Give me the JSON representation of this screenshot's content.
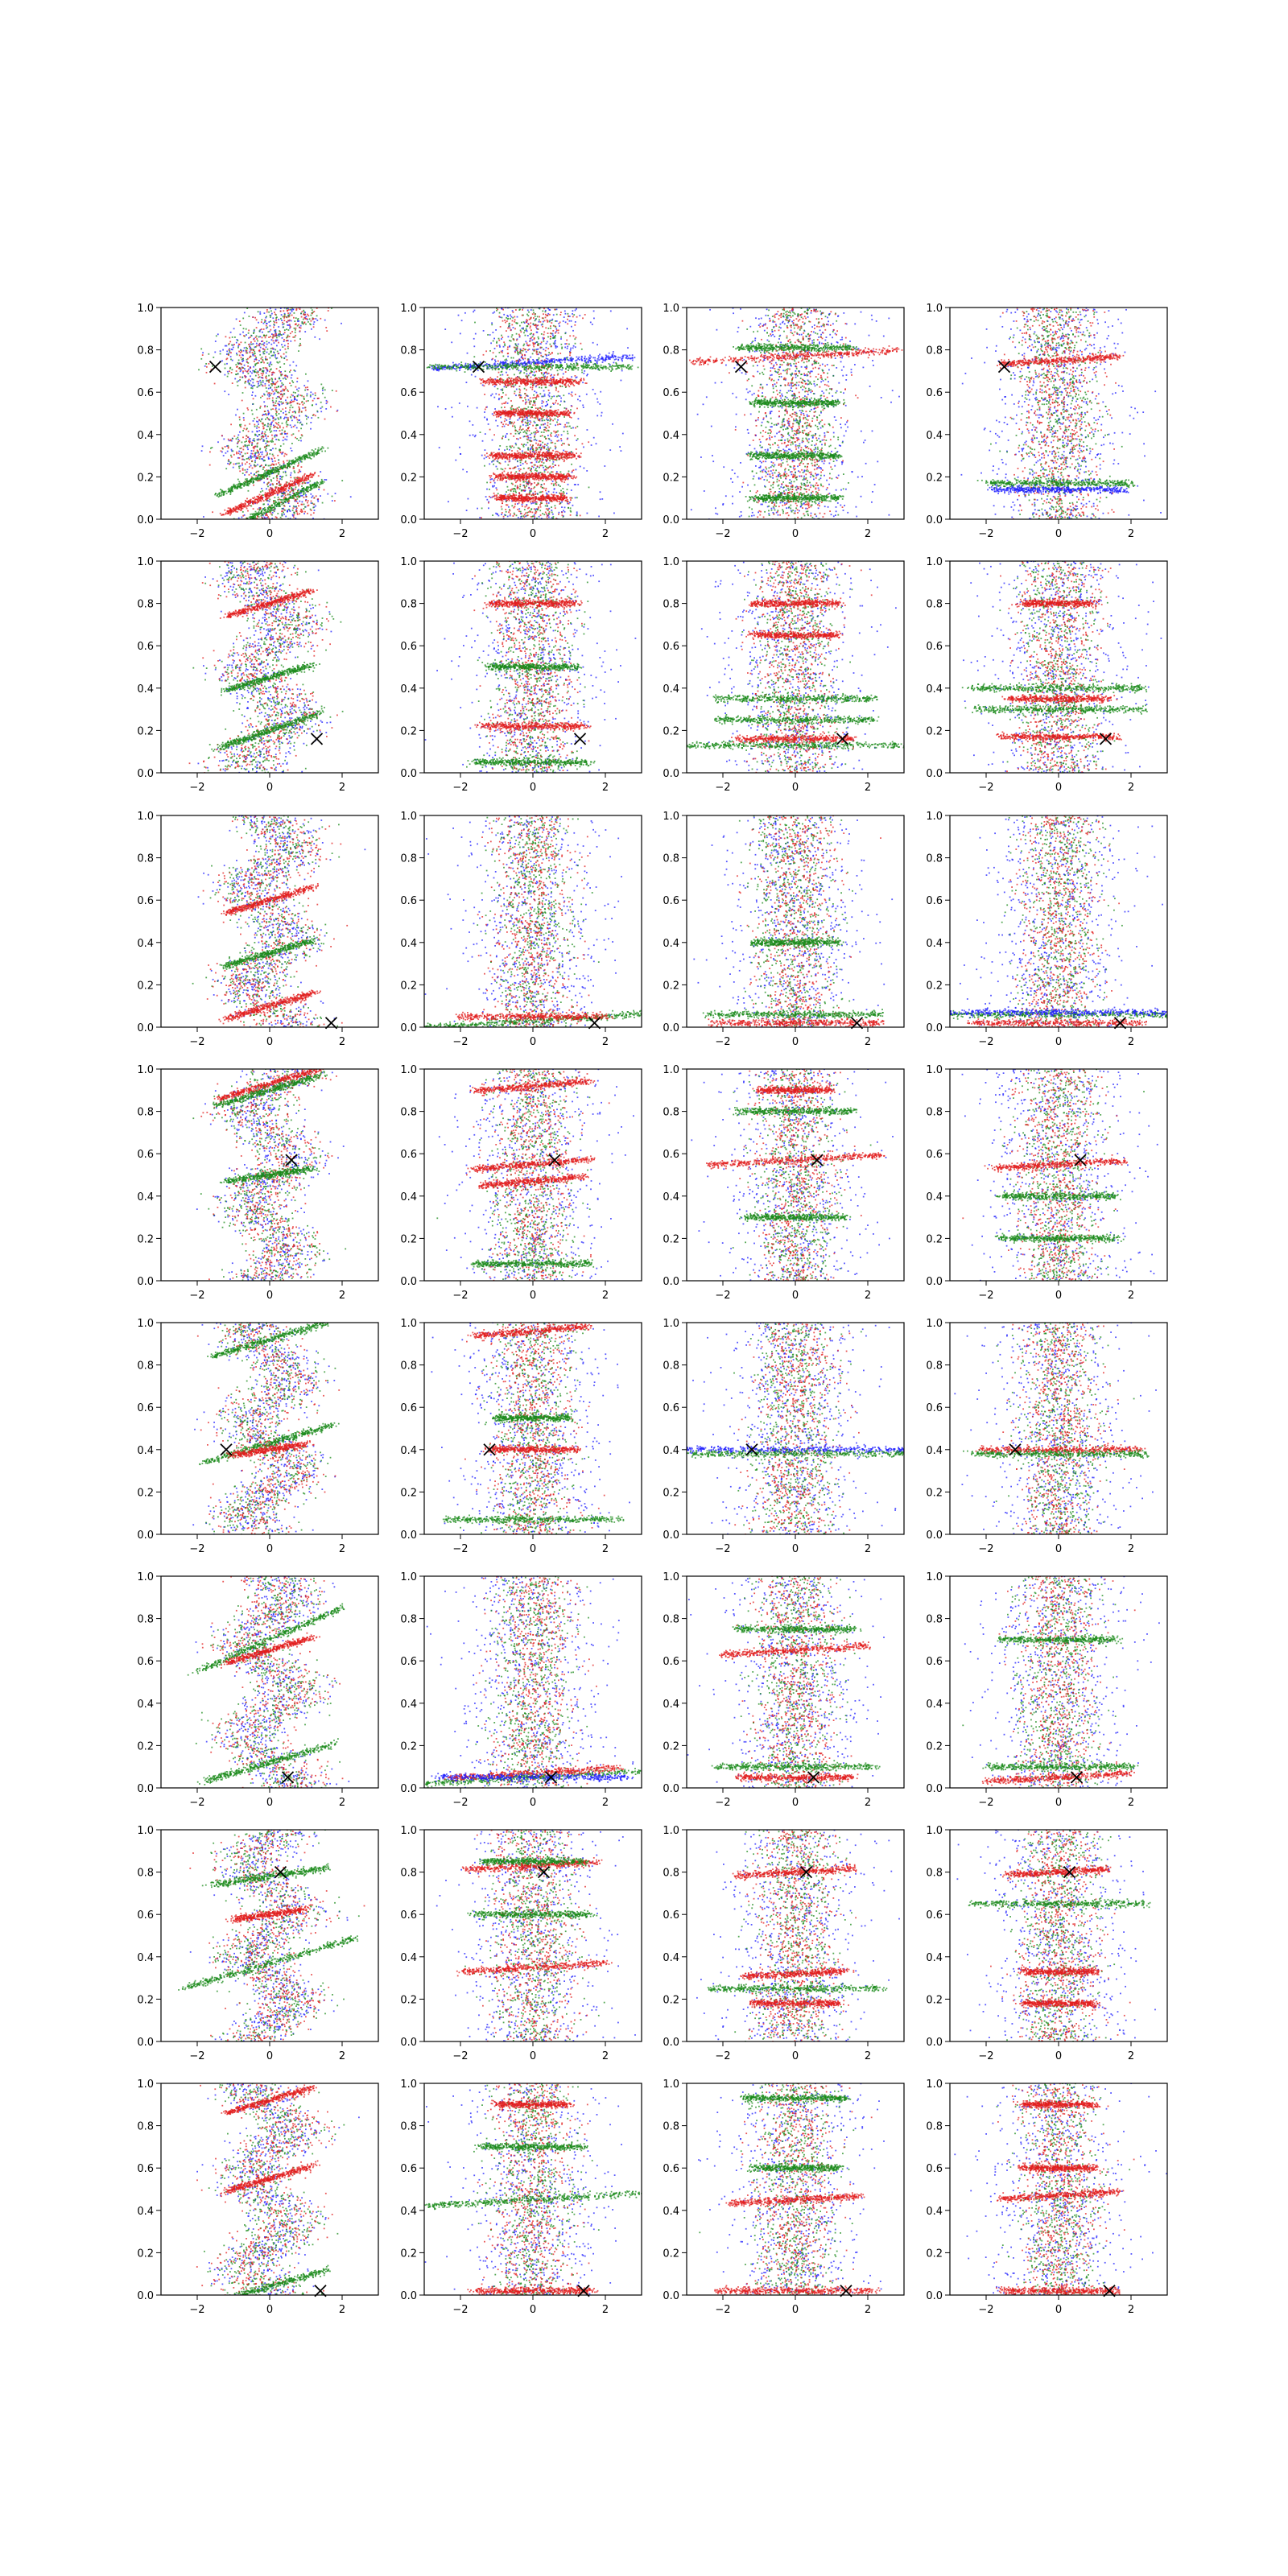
{
  "chart_data": {
    "type": "scatter",
    "grid": {
      "rows": 8,
      "cols": 4
    },
    "xlim": [
      -3,
      3
    ],
    "ylim": [
      0,
      1
    ],
    "x_ticks": [
      -2,
      0,
      2
    ],
    "x_tick_labels": [
      "−2",
      "0",
      "2"
    ],
    "y_ticks": [
      0,
      0.2,
      0.4,
      0.6,
      0.8,
      1.0
    ],
    "y_tick_labels": [
      "0.0",
      "0.2",
      "0.4",
      "0.6",
      "0.8",
      "1.0"
    ],
    "grid_lines": false,
    "legend": "none",
    "series_colors": {
      "blue": "#1f1fff",
      "red": "#e21d1d",
      "green": "#1a8a1a"
    },
    "marker_color": "#000000",
    "markers": [
      {
        "x": -1.5,
        "y": 0.72
      },
      {
        "x": 1.3,
        "y": 0.16
      },
      {
        "x": 1.7,
        "y": 0.02
      },
      {
        "x": 0.6,
        "y": 0.57
      },
      {
        "x": -1.2,
        "y": 0.4
      },
      {
        "x": 0.5,
        "y": 0.05
      },
      {
        "x": 0.3,
        "y": 0.8
      },
      {
        "x": 1.4,
        "y": 0.02
      }
    ],
    "panels": [
      {
        "row": 0,
        "col": 0,
        "style": "zigzag",
        "bands": [
          {
            "y": 0.05,
            "c": "green",
            "w": 1.4,
            "s": 0.18
          },
          {
            "y": 0.22,
            "c": "green",
            "w": 1.4,
            "s": 0.15
          },
          {
            "y": 0.12,
            "c": "red",
            "w": 1.2,
            "s": 0.15
          }
        ]
      },
      {
        "row": 0,
        "col": 1,
        "style": "bands",
        "bands": [
          {
            "y": 0.74,
            "c": "blue",
            "w": 2.8,
            "s": 0.02
          },
          {
            "y": 0.72,
            "c": "green",
            "w": 2.8,
            "s": 0.0
          },
          {
            "y": 0.65,
            "c": "red",
            "w": 1.3,
            "s": 0.0
          },
          {
            "y": 0.5,
            "c": "red",
            "w": 1.0,
            "s": 0.0
          },
          {
            "y": 0.3,
            "c": "red",
            "w": 1.2,
            "s": 0.0
          },
          {
            "y": 0.2,
            "c": "red",
            "w": 1.0,
            "s": 0.0
          },
          {
            "y": 0.1,
            "c": "red",
            "w": 1.0,
            "s": 0.0
          }
        ]
      },
      {
        "row": 0,
        "col": 2,
        "style": "bands",
        "bands": [
          {
            "y": 0.77,
            "c": "red",
            "w": 2.8,
            "s": 0.02
          },
          {
            "y": 0.81,
            "c": "green",
            "w": 1.6,
            "s": 0.0
          },
          {
            "y": 0.55,
            "c": "green",
            "w": 1.2,
            "s": 0.0
          },
          {
            "y": 0.3,
            "c": "green",
            "w": 1.2,
            "s": 0.0
          },
          {
            "y": 0.1,
            "c": "green",
            "w": 1.2,
            "s": 0.0
          }
        ]
      },
      {
        "row": 0,
        "col": 3,
        "style": "bands",
        "bands": [
          {
            "y": 0.75,
            "c": "red",
            "w": 1.6,
            "s": 0.02
          },
          {
            "y": 0.17,
            "c": "green",
            "w": 2.0,
            "s": 0.0
          },
          {
            "y": 0.14,
            "c": "blue",
            "w": 1.8,
            "s": 0.0
          }
        ]
      },
      {
        "row": 1,
        "col": 0,
        "style": "zigzag",
        "bands": [
          {
            "y": 0.2,
            "c": "green",
            "w": 1.4,
            "s": 0.12
          },
          {
            "y": 0.45,
            "c": "green",
            "w": 1.2,
            "s": 0.1
          },
          {
            "y": 0.8,
            "c": "red",
            "w": 1.2,
            "s": 0.1
          }
        ]
      },
      {
        "row": 1,
        "col": 1,
        "style": "bands",
        "bands": [
          {
            "y": 0.8,
            "c": "red",
            "w": 1.2,
            "s": 0.0
          },
          {
            "y": 0.22,
            "c": "red",
            "w": 1.4,
            "s": 0.0
          },
          {
            "y": 0.05,
            "c": "green",
            "w": 1.6,
            "s": 0.0
          },
          {
            "y": 0.5,
            "c": "green",
            "w": 1.2,
            "s": 0.0
          }
        ]
      },
      {
        "row": 1,
        "col": 2,
        "style": "bands",
        "bands": [
          {
            "y": 0.13,
            "c": "green",
            "w": 3.0,
            "s": 0.0
          },
          {
            "y": 0.25,
            "c": "green",
            "w": 2.2,
            "s": 0.0
          },
          {
            "y": 0.35,
            "c": "green",
            "w": 2.2,
            "s": 0.0
          },
          {
            "y": 0.16,
            "c": "red",
            "w": 1.6,
            "s": 0.0
          },
          {
            "y": 0.8,
            "c": "red",
            "w": 1.2,
            "s": 0.0
          },
          {
            "y": 0.65,
            "c": "red",
            "w": 1.2,
            "s": 0.0
          }
        ]
      },
      {
        "row": 1,
        "col": 3,
        "style": "bands",
        "bands": [
          {
            "y": 0.17,
            "c": "red",
            "w": 1.6,
            "s": 0.0
          },
          {
            "y": 0.35,
            "c": "red",
            "w": 1.4,
            "s": 0.0
          },
          {
            "y": 0.4,
            "c": "green",
            "w": 2.4,
            "s": 0.0
          },
          {
            "y": 0.3,
            "c": "green",
            "w": 2.4,
            "s": 0.0
          },
          {
            "y": 0.8,
            "c": "red",
            "w": 1.0,
            "s": 0.0
          }
        ]
      },
      {
        "row": 2,
        "col": 0,
        "style": "zigzag",
        "bands": [
          {
            "y": 0.35,
            "c": "green",
            "w": 1.2,
            "s": 0.1
          },
          {
            "y": 0.6,
            "c": "red",
            "w": 1.2,
            "s": 0.1
          },
          {
            "y": 0.1,
            "c": "red",
            "w": 1.2,
            "s": 0.1
          }
        ]
      },
      {
        "row": 2,
        "col": 1,
        "style": "bands",
        "bands": [
          {
            "y": 0.03,
            "c": "green",
            "w": 3.0,
            "s": 0.02
          },
          {
            "y": 0.05,
            "c": "red",
            "w": 2.0,
            "s": 0.0
          }
        ]
      },
      {
        "row": 2,
        "col": 2,
        "style": "bands",
        "bands": [
          {
            "y": 0.02,
            "c": "red",
            "w": 2.4,
            "s": 0.0
          },
          {
            "y": 0.06,
            "c": "green",
            "w": 2.4,
            "s": 0.0
          },
          {
            "y": 0.4,
            "c": "green",
            "w": 1.2,
            "s": 0.0
          }
        ]
      },
      {
        "row": 2,
        "col": 3,
        "style": "bands",
        "bands": [
          {
            "y": 0.06,
            "c": "green",
            "w": 3.2,
            "s": 0.0
          },
          {
            "y": 0.07,
            "c": "blue",
            "w": 3.2,
            "s": 0.0
          },
          {
            "y": 0.02,
            "c": "red",
            "w": 2.4,
            "s": 0.0
          }
        ]
      },
      {
        "row": 3,
        "col": 0,
        "style": "zigzag",
        "bands": [
          {
            "y": 0.93,
            "c": "red",
            "w": 1.4,
            "s": 0.1
          },
          {
            "y": 0.5,
            "c": "green",
            "w": 1.2,
            "s": 0.05
          },
          {
            "y": 0.9,
            "c": "green",
            "w": 1.4,
            "s": 0.1
          }
        ]
      },
      {
        "row": 3,
        "col": 1,
        "style": "bands",
        "bands": [
          {
            "y": 0.92,
            "c": "red",
            "w": 1.6,
            "s": 0.03
          },
          {
            "y": 0.55,
            "c": "red",
            "w": 1.6,
            "s": 0.03
          },
          {
            "y": 0.47,
            "c": "red",
            "w": 1.4,
            "s": 0.03
          },
          {
            "y": 0.08,
            "c": "green",
            "w": 1.6,
            "s": 0.0
          }
        ]
      },
      {
        "row": 3,
        "col": 2,
        "style": "bands",
        "bands": [
          {
            "y": 0.57,
            "c": "red",
            "w": 2.4,
            "s": 0.02
          },
          {
            "y": 0.8,
            "c": "green",
            "w": 1.6,
            "s": 0.0
          },
          {
            "y": 0.9,
            "c": "red",
            "w": 1.0,
            "s": 0.0
          },
          {
            "y": 0.3,
            "c": "green",
            "w": 1.4,
            "s": 0.0
          }
        ]
      },
      {
        "row": 3,
        "col": 3,
        "style": "bands",
        "bands": [
          {
            "y": 0.55,
            "c": "red",
            "w": 1.8,
            "s": 0.02
          },
          {
            "y": 0.2,
            "c": "green",
            "w": 1.6,
            "s": 0.0
          },
          {
            "y": 0.4,
            "c": "green",
            "w": 1.6,
            "s": 0.0
          }
        ]
      },
      {
        "row": 4,
        "col": 0,
        "style": "zigzag",
        "bands": [
          {
            "y": 0.92,
            "c": "green",
            "w": 1.6,
            "s": 0.1
          },
          {
            "y": 0.43,
            "c": "green",
            "w": 1.8,
            "s": 0.1
          },
          {
            "y": 0.4,
            "c": "red",
            "w": 1.0,
            "s": 0.05
          }
        ]
      },
      {
        "row": 4,
        "col": 1,
        "style": "bands",
        "bands": [
          {
            "y": 0.96,
            "c": "red",
            "w": 1.6,
            "s": 0.03
          },
          {
            "y": 0.4,
            "c": "red",
            "w": 1.2,
            "s": 0.0
          },
          {
            "y": 0.07,
            "c": "green",
            "w": 2.4,
            "s": 0.0
          },
          {
            "y": 0.55,
            "c": "green",
            "w": 1.0,
            "s": 0.0
          }
        ]
      },
      {
        "row": 4,
        "col": 2,
        "style": "bands",
        "bands": [
          {
            "y": 0.4,
            "c": "blue",
            "w": 3.2,
            "s": 0.0
          },
          {
            "y": 0.38,
            "c": "green",
            "w": 3.2,
            "s": 0.0
          }
        ]
      },
      {
        "row": 4,
        "col": 3,
        "style": "bands",
        "bands": [
          {
            "y": 0.4,
            "c": "red",
            "w": 2.2,
            "s": 0.0
          },
          {
            "y": 0.38,
            "c": "green",
            "w": 2.4,
            "s": 0.0
          }
        ]
      },
      {
        "row": 5,
        "col": 0,
        "style": "zigzag",
        "bands": [
          {
            "y": 0.7,
            "c": "green",
            "w": 2.0,
            "s": 0.15
          },
          {
            "y": 0.12,
            "c": "green",
            "w": 1.8,
            "s": 0.1
          },
          {
            "y": 0.65,
            "c": "red",
            "w": 1.2,
            "s": 0.1
          }
        ]
      },
      {
        "row": 5,
        "col": 1,
        "style": "bands",
        "bands": [
          {
            "y": 0.05,
            "c": "green",
            "w": 3.2,
            "s": 0.02
          },
          {
            "y": 0.07,
            "c": "red",
            "w": 2.4,
            "s": 0.02
          },
          {
            "y": 0.05,
            "c": "blue",
            "w": 2.6,
            "s": 0.0
          }
        ]
      },
      {
        "row": 5,
        "col": 2,
        "style": "bands",
        "bands": [
          {
            "y": 0.65,
            "c": "red",
            "w": 2.0,
            "s": 0.02
          },
          {
            "y": 0.75,
            "c": "green",
            "w": 1.6,
            "s": 0.0
          },
          {
            "y": 0.1,
            "c": "green",
            "w": 2.2,
            "s": 0.0
          },
          {
            "y": 0.05,
            "c": "red",
            "w": 1.6,
            "s": 0.0
          }
        ]
      },
      {
        "row": 5,
        "col": 3,
        "style": "bands",
        "bands": [
          {
            "y": 0.05,
            "c": "red",
            "w": 2.0,
            "s": 0.02
          },
          {
            "y": 0.7,
            "c": "green",
            "w": 1.6,
            "s": 0.0
          },
          {
            "y": 0.1,
            "c": "green",
            "w": 2.0,
            "s": 0.0
          }
        ]
      },
      {
        "row": 6,
        "col": 0,
        "style": "zigzag",
        "bands": [
          {
            "y": 0.37,
            "c": "green",
            "w": 2.4,
            "s": 0.1
          },
          {
            "y": 0.78,
            "c": "green",
            "w": 1.6,
            "s": 0.05
          },
          {
            "y": 0.6,
            "c": "red",
            "w": 1.0,
            "s": 0.05
          }
        ]
      },
      {
        "row": 6,
        "col": 1,
        "style": "bands",
        "bands": [
          {
            "y": 0.83,
            "c": "red",
            "w": 1.8,
            "s": 0.02
          },
          {
            "y": 0.85,
            "c": "green",
            "w": 1.4,
            "s": 0.0
          },
          {
            "y": 0.35,
            "c": "red",
            "w": 2.0,
            "s": 0.02
          },
          {
            "y": 0.6,
            "c": "green",
            "w": 1.6,
            "s": 0.0
          }
        ]
      },
      {
        "row": 6,
        "col": 2,
        "style": "bands",
        "bands": [
          {
            "y": 0.8,
            "c": "red",
            "w": 1.6,
            "s": 0.02
          },
          {
            "y": 0.32,
            "c": "red",
            "w": 1.4,
            "s": 0.02
          },
          {
            "y": 0.25,
            "c": "green",
            "w": 2.4,
            "s": 0.0
          },
          {
            "y": 0.18,
            "c": "red",
            "w": 1.2,
            "s": 0.0
          }
        ]
      },
      {
        "row": 6,
        "col": 3,
        "style": "bands",
        "bands": [
          {
            "y": 0.8,
            "c": "red",
            "w": 1.4,
            "s": 0.02
          },
          {
            "y": 0.65,
            "c": "green",
            "w": 2.4,
            "s": 0.0
          },
          {
            "y": 0.33,
            "c": "red",
            "w": 1.0,
            "s": 0.0
          },
          {
            "y": 0.18,
            "c": "red",
            "w": 1.0,
            "s": 0.0
          }
        ]
      },
      {
        "row": 7,
        "col": 0,
        "style": "zigzag",
        "bands": [
          {
            "y": 0.04,
            "c": "green",
            "w": 1.6,
            "s": 0.1
          },
          {
            "y": 0.55,
            "c": "red",
            "w": 1.2,
            "s": 0.1
          },
          {
            "y": 0.92,
            "c": "red",
            "w": 1.2,
            "s": 0.1
          }
        ]
      },
      {
        "row": 7,
        "col": 1,
        "style": "bands",
        "bands": [
          {
            "y": 0.45,
            "c": "green",
            "w": 3.0,
            "s": 0.02
          },
          {
            "y": 0.02,
            "c": "red",
            "w": 1.6,
            "s": 0.0
          },
          {
            "y": 0.9,
            "c": "red",
            "w": 1.0,
            "s": 0.0
          },
          {
            "y": 0.7,
            "c": "green",
            "w": 1.4,
            "s": 0.0
          }
        ]
      },
      {
        "row": 7,
        "col": 2,
        "style": "bands",
        "bands": [
          {
            "y": 0.45,
            "c": "red",
            "w": 1.8,
            "s": 0.02
          },
          {
            "y": 0.02,
            "c": "red",
            "w": 2.2,
            "s": 0.0
          },
          {
            "y": 0.93,
            "c": "green",
            "w": 1.4,
            "s": 0.0
          },
          {
            "y": 0.6,
            "c": "green",
            "w": 1.2,
            "s": 0.0
          }
        ]
      },
      {
        "row": 7,
        "col": 3,
        "style": "bands",
        "bands": [
          {
            "y": 0.47,
            "c": "red",
            "w": 1.6,
            "s": 0.02
          },
          {
            "y": 0.02,
            "c": "red",
            "w": 1.6,
            "s": 0.0
          },
          {
            "y": 0.9,
            "c": "red",
            "w": 1.0,
            "s": 0.0
          },
          {
            "y": 0.6,
            "c": "red",
            "w": 1.0,
            "s": 0.0
          }
        ]
      }
    ]
  }
}
